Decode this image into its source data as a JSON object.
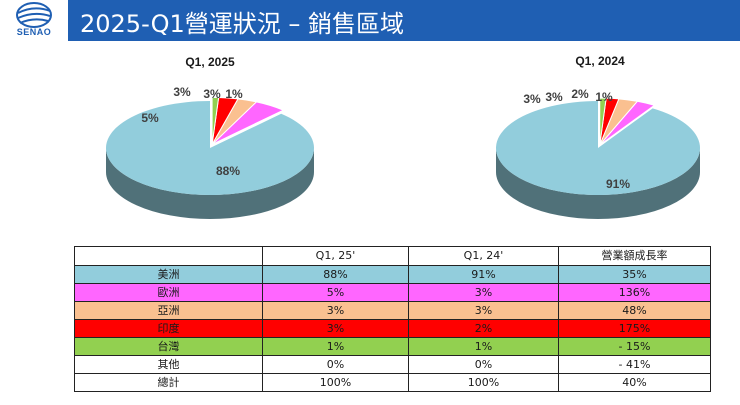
{
  "header": {
    "title": "2025-Q1營運狀況 – 銷售區域",
    "logo_text": "SENAO",
    "brand_color": "#1f5fb3"
  },
  "chart_data": [
    {
      "type": "pie",
      "title": "Q1, 2025",
      "slices": [
        {
          "name": "美洲",
          "value": 88,
          "label": "88%",
          "color": "#92cddc"
        },
        {
          "name": "歐洲",
          "value": 5,
          "label": "5%",
          "color": "#ff66ff"
        },
        {
          "name": "亞洲",
          "value": 3,
          "label": "3%",
          "color": "#fac090"
        },
        {
          "name": "印度",
          "value": 3,
          "label": "3%",
          "color": "#ff0000"
        },
        {
          "name": "台灣",
          "value": 1,
          "label": "1%",
          "color": "#92d050"
        }
      ]
    },
    {
      "type": "pie",
      "title": "Q1, 2024",
      "slices": [
        {
          "name": "美洲",
          "value": 91,
          "label": "91%",
          "color": "#92cddc"
        },
        {
          "name": "歐洲",
          "value": 3,
          "label": "3%",
          "color": "#ff66ff"
        },
        {
          "name": "亞洲",
          "value": 3,
          "label": "3%",
          "color": "#fac090"
        },
        {
          "name": "印度",
          "value": 2,
          "label": "2%",
          "color": "#ff0000"
        },
        {
          "name": "台灣",
          "value": 1,
          "label": "1%",
          "color": "#92d050"
        }
      ]
    },
    {
      "type": "table",
      "columns": [
        "",
        "Q1, 25'",
        "Q1, 24'",
        "營業額成長率"
      ],
      "rows": [
        {
          "region": "美洲",
          "q1_25": "88%",
          "q1_24": "91%",
          "growth": "35%",
          "color": "#92cddc"
        },
        {
          "region": "歐洲",
          "q1_25": "5%",
          "q1_24": "3%",
          "growth": "136%",
          "color": "#ff66ff"
        },
        {
          "region": "亞洲",
          "q1_25": "3%",
          "q1_24": "3%",
          "growth": "48%",
          "color": "#fac090"
        },
        {
          "region": "印度",
          "q1_25": "3%",
          "q1_24": "2%",
          "growth": "175%",
          "color": "#ff0000"
        },
        {
          "region": "台灣",
          "q1_25": "1%",
          "q1_24": "1%",
          "growth": "- 15%",
          "color": "#92d050"
        },
        {
          "region": "其他",
          "q1_25": "0%",
          "q1_24": "0%",
          "growth": "- 41%",
          "color": "#ffffff"
        },
        {
          "region": "總計",
          "q1_25": "100%",
          "q1_24": "100%",
          "growth": "40%",
          "color": "#ffffff"
        }
      ]
    }
  ]
}
